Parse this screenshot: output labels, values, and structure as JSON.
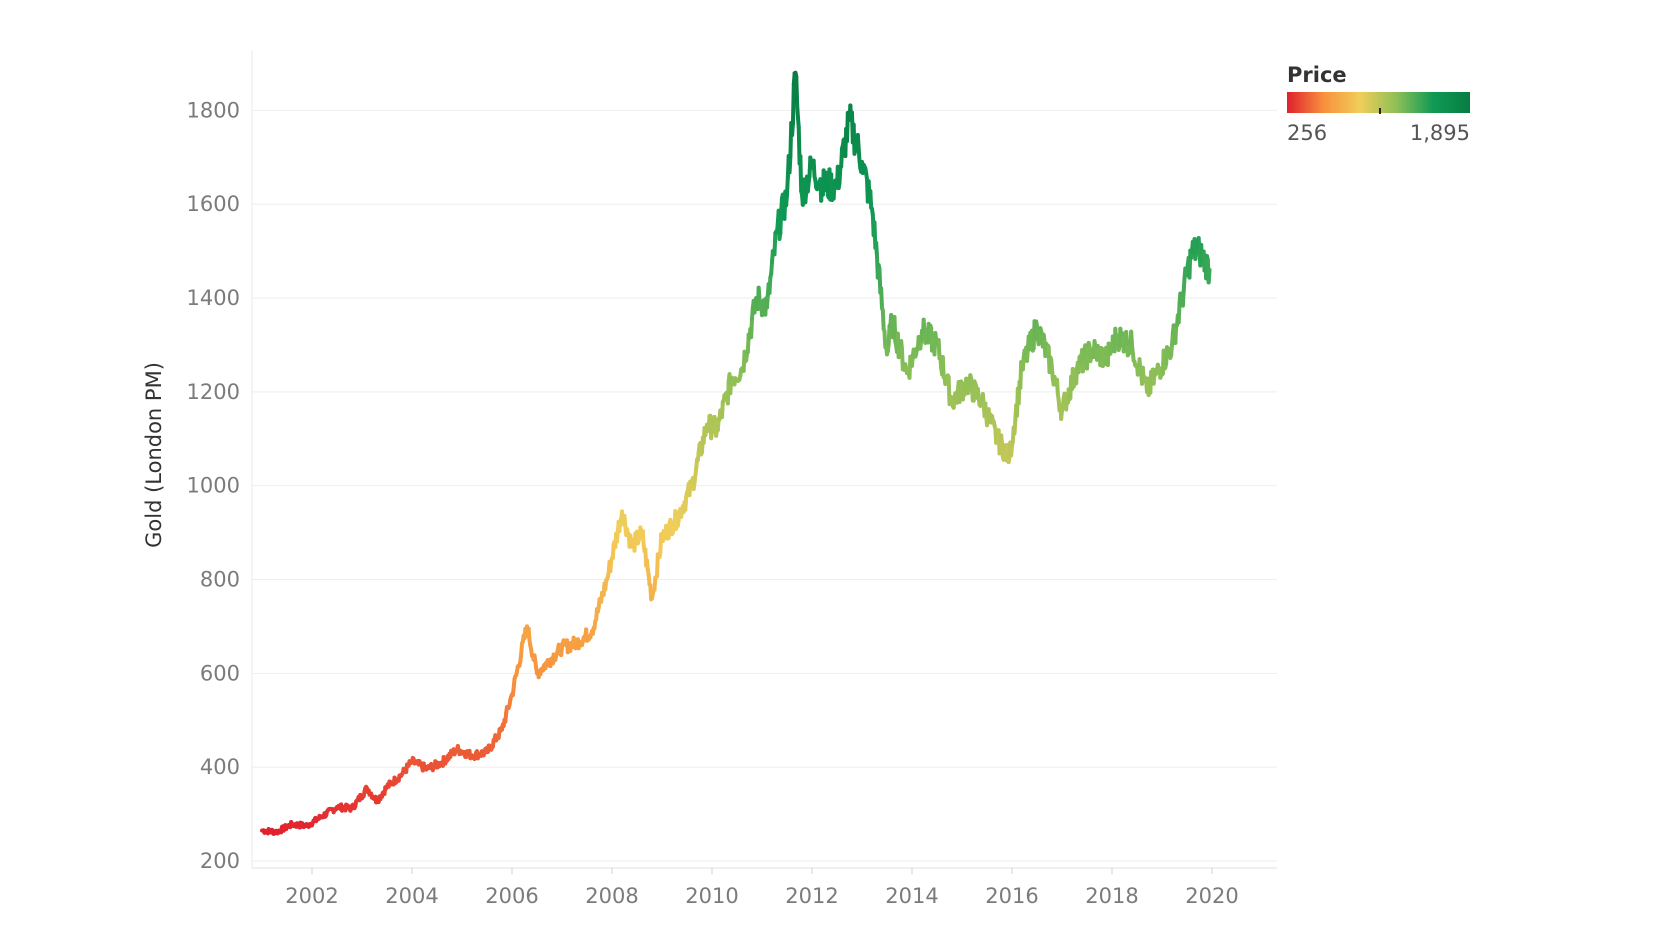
{
  "chart_data": {
    "type": "line",
    "ylabel": "Gold (London PM)",
    "xlabel": "",
    "y_ticks": [
      "200",
      "400",
      "600",
      "800",
      "1000",
      "1200",
      "1400",
      "1600",
      "1800"
    ],
    "x_ticks": [
      "2002",
      "2004",
      "2006",
      "2008",
      "2010",
      "2012",
      "2014",
      "2016",
      "2018",
      "2020"
    ],
    "xlim": [
      2000.8,
      2021.3
    ],
    "ylim": [
      185,
      1950
    ],
    "grid": true,
    "legend": {
      "title": "Price",
      "min_label": "256",
      "max_label": "1,895",
      "placement": "top-right",
      "colors": [
        "#e0202e",
        "#f7903c",
        "#f1ce5a",
        "#8cbf56",
        "#0f9a54",
        "#087c42"
      ]
    },
    "series": [
      {
        "x": [
          2001.0,
          2001.3,
          2001.6,
          2001.9,
          2002.2,
          2002.5,
          2002.8,
          2003.1,
          2003.3,
          2003.5,
          2003.8,
          2004.0,
          2004.3,
          2004.6,
          2004.9,
          2005.2,
          2005.5,
          2005.8,
          2006.0,
          2006.3,
          2006.5,
          2006.7,
          2007.0,
          2007.3,
          2007.6,
          2007.9,
          2008.2,
          2008.4,
          2008.6,
          2008.8,
          2009.0,
          2009.3,
          2009.6,
          2009.9,
          2010.1,
          2010.4,
          2010.6,
          2010.9,
          2011.1,
          2011.3,
          2011.5,
          2011.67,
          2011.8,
          2012.0,
          2012.2,
          2012.5,
          2012.75,
          2013.0,
          2013.2,
          2013.5,
          2013.6,
          2013.9,
          2014.2,
          2014.5,
          2014.8,
          2015.1,
          2015.4,
          2015.7,
          2015.95,
          2016.2,
          2016.5,
          2016.8,
          2017.0,
          2017.3,
          2017.6,
          2017.9,
          2018.1,
          2018.4,
          2018.7,
          2018.9,
          2019.2,
          2019.4,
          2019.6,
          2019.75,
          2019.95
        ],
        "y": [
          265,
          262,
          278,
          275,
          295,
          315,
          312,
          355,
          328,
          358,
          385,
          412,
          396,
          410,
          438,
          425,
          432,
          480,
          555,
          700,
          600,
          622,
          655,
          665,
          690,
          800,
          945,
          870,
          900,
          760,
          890,
          930,
          1000,
          1130,
          1120,
          1230,
          1250,
          1400,
          1380,
          1540,
          1620,
          1880,
          1620,
          1680,
          1640,
          1640,
          1780,
          1690,
          1590,
          1280,
          1350,
          1240,
          1330,
          1300,
          1180,
          1220,
          1180,
          1100,
          1060,
          1250,
          1340,
          1250,
          1160,
          1250,
          1290,
          1270,
          1320,
          1300,
          1200,
          1240,
          1300,
          1400,
          1500,
          1500,
          1460
        ]
      }
    ]
  }
}
